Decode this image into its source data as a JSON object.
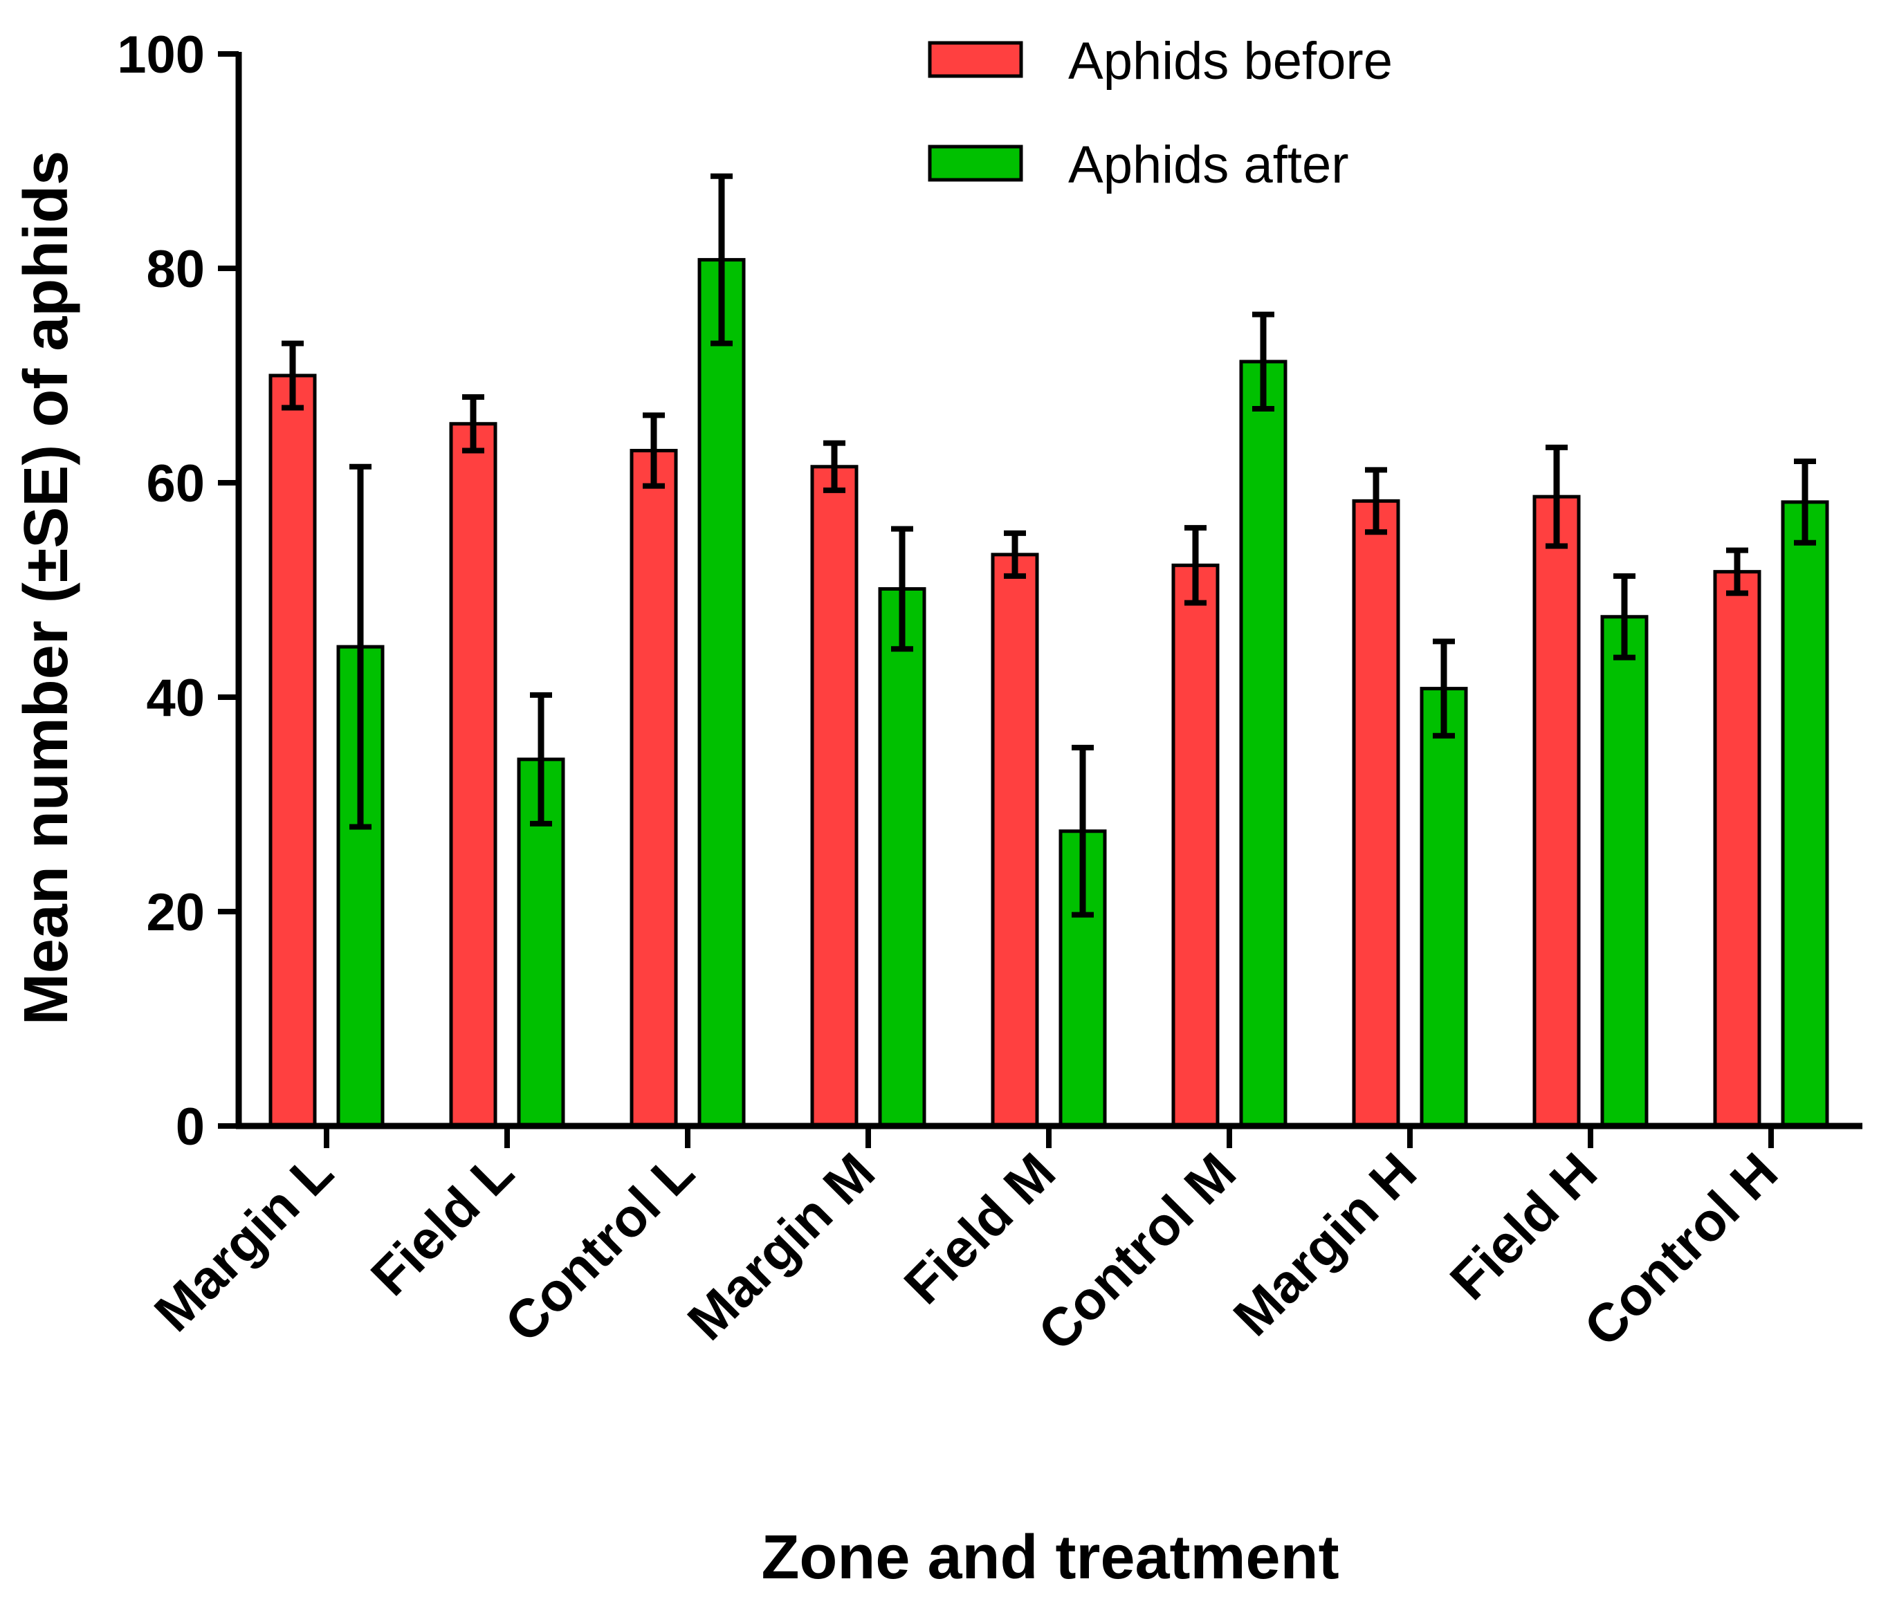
{
  "chart_data": {
    "type": "bar",
    "title": "",
    "xlabel": "Zone and treatment",
    "ylabel": "Mean number (±SE) of aphids",
    "ylim": [
      0,
      100
    ],
    "yticks": [
      0,
      20,
      40,
      60,
      80,
      100
    ],
    "categories": [
      "Margin L",
      "Field L",
      "Control L",
      "Margin M",
      "Field M",
      "Control M",
      "Margin H",
      "Field H",
      "Control H"
    ],
    "series": [
      {
        "name": "Aphids before",
        "color": "#ff4040",
        "values": [
          70.0,
          65.5,
          63.0,
          61.5,
          53.3,
          52.3,
          58.3,
          58.7,
          51.7
        ],
        "errors": [
          3.0,
          2.5,
          3.3,
          2.2,
          2.0,
          3.5,
          2.9,
          4.6,
          2.0
        ]
      },
      {
        "name": "Aphids after",
        "color": "#00c000",
        "values": [
          44.7,
          34.2,
          80.8,
          50.1,
          27.5,
          71.3,
          40.8,
          47.5,
          58.2
        ],
        "errors": [
          16.8,
          6.0,
          7.8,
          5.6,
          7.8,
          4.4,
          4.4,
          3.8,
          3.8
        ]
      }
    ],
    "legend_position": "top-right"
  }
}
